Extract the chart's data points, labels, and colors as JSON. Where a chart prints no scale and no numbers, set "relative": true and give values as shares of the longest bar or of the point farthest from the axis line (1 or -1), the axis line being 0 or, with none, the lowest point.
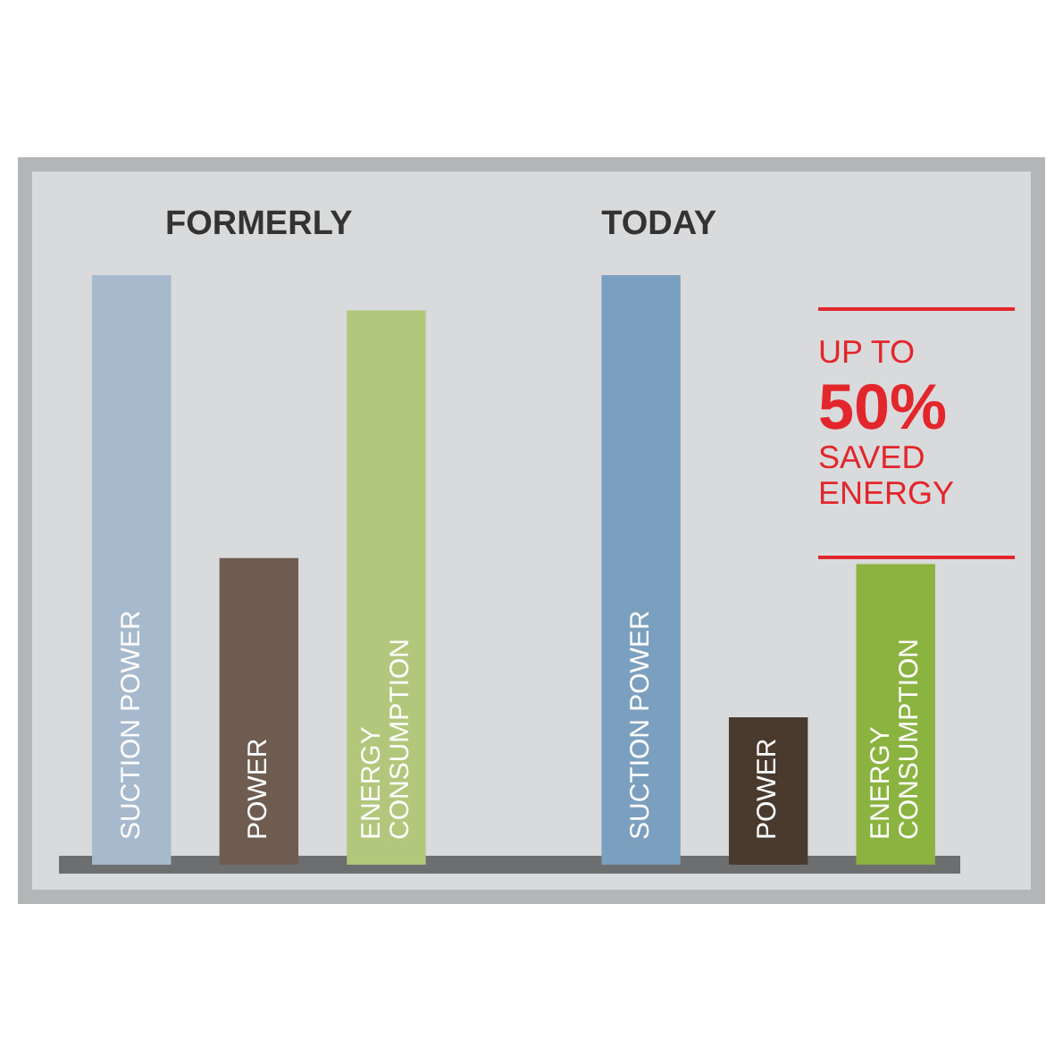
{
  "chart_data": {
    "type": "bar",
    "relative": true,
    "categories": [
      "SUCTION POWER",
      "POWER",
      "ENERGY CONSUMPTION",
      null,
      "SUCTION POWER",
      "POWER",
      "ENERGY CONSUMPTION"
    ],
    "values": [
      1,
      0.52,
      0.94,
      null,
      1,
      0.25,
      0.51
    ],
    "colors": [
      "#a7b9cc",
      "#6e5c50",
      "#b0c77c",
      null,
      "#7b9fbe",
      "#4a3a2e",
      "#8ab43f"
    ],
    "annotations": [
      "FORMERLY",
      "TODAY",
      "UP TO",
      "50%",
      "SAVED ENERGY"
    ]
  }
}
